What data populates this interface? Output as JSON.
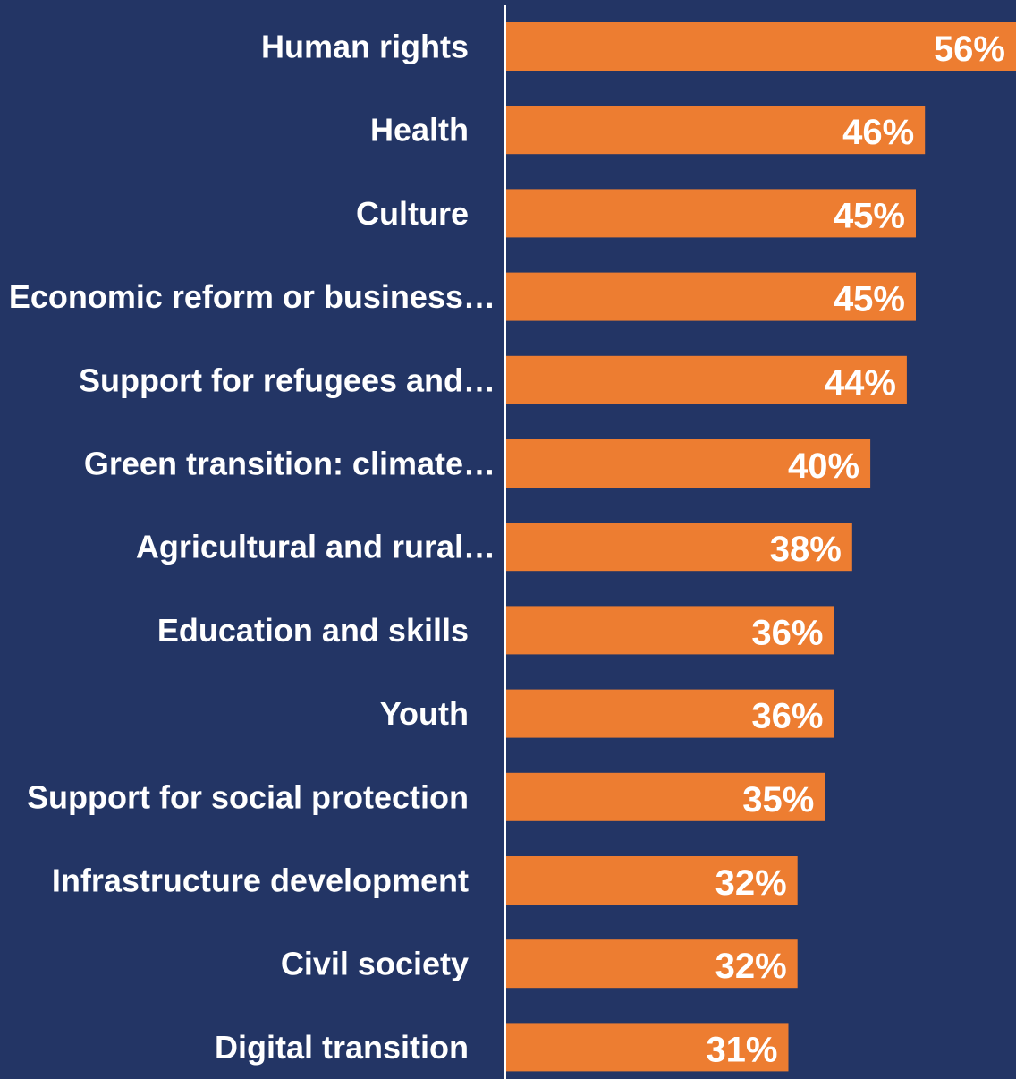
{
  "chart_data": {
    "type": "bar",
    "orientation": "horizontal",
    "categories": [
      "Human rights",
      "Health",
      "Culture",
      "Economic reform or business…",
      "Support for refugees and…",
      "Green transition: climate…",
      "Agricultural and rural…",
      "Education and skills",
      "Youth",
      "Support for social protection",
      "Infrastructure development",
      "Civil society",
      "Digital transition"
    ],
    "values": [
      56,
      46,
      45,
      45,
      44,
      40,
      38,
      36,
      36,
      35,
      32,
      32,
      31
    ],
    "value_labels": [
      "56%",
      "46%",
      "45%",
      "45%",
      "44%",
      "40%",
      "38%",
      "36%",
      "36%",
      "35%",
      "32%",
      "32%",
      "31%"
    ],
    "unit": "%",
    "xlim": [
      0,
      56
    ],
    "grid": false,
    "legend": "none",
    "title": "",
    "xlabel": "",
    "ylabel": ""
  },
  "colors": {
    "background": "#233565",
    "bar": "#ED7D31",
    "axis_line": "#ffffff",
    "text": "#ffffff"
  }
}
